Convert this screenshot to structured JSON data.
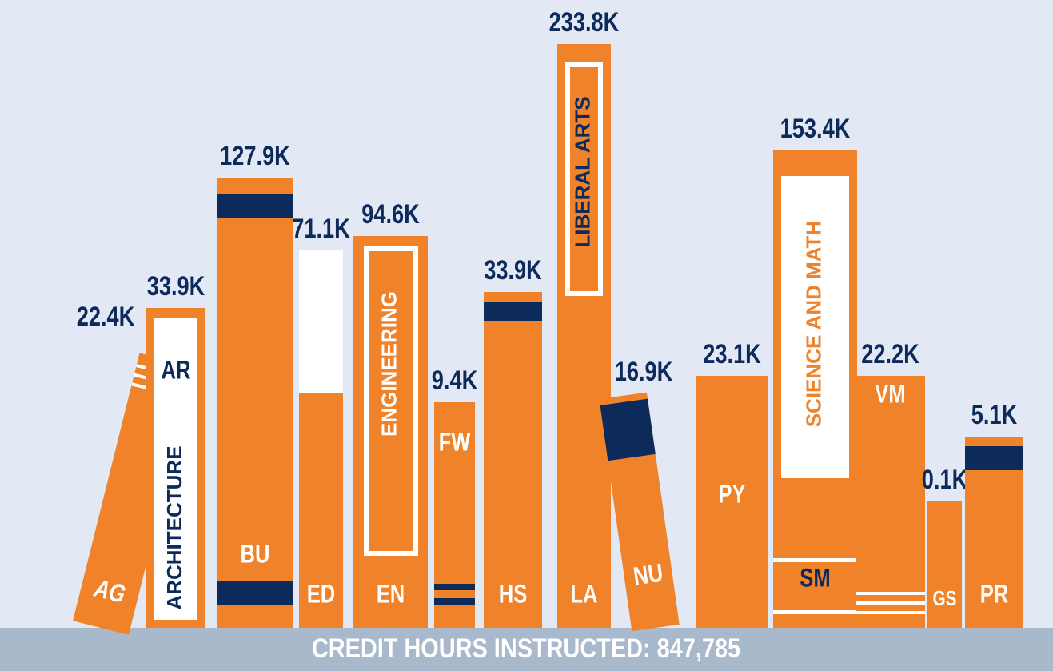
{
  "title": "CREDIT HOURS INSTRUCTED: 847,785",
  "books": [
    {
      "code": "AG",
      "value": "22.4K"
    },
    {
      "code": "AR",
      "value": "33.9K",
      "spine": "ARCHITECTURE"
    },
    {
      "code": "BU",
      "value": "127.9K"
    },
    {
      "code": "ED",
      "value": "71.1K"
    },
    {
      "code": "EN",
      "value": "94.6K",
      "spine": "ENGINEERING"
    },
    {
      "code": "FW",
      "value": "9.4K"
    },
    {
      "code": "HS",
      "value": "33.9K"
    },
    {
      "code": "LA",
      "value": "233.8K",
      "spine": "LIBERAL ARTS"
    },
    {
      "code": "NU",
      "value": "16.9K"
    },
    {
      "code": "PY",
      "value": "23.1K"
    },
    {
      "code": "SM",
      "value": "153.4K",
      "spine": "SCIENCE AND MATH"
    },
    {
      "code": "VM",
      "value": "22.2K"
    },
    {
      "code": "GS",
      "value": "0.1K"
    },
    {
      "code": "PR",
      "value": "5.1K"
    }
  ]
}
